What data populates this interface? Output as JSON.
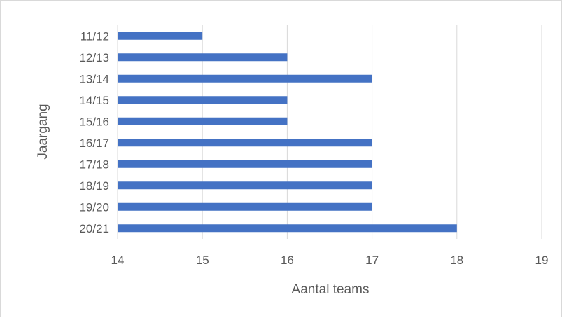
{
  "chart_data": {
    "type": "bar",
    "orientation": "horizontal",
    "title": "",
    "xlabel": "Aantal teams",
    "ylabel": "Jaargang",
    "xlim": [
      14,
      19
    ],
    "x_ticks": [
      14,
      15,
      16,
      17,
      18,
      19
    ],
    "categories": [
      "11/12",
      "12/13",
      "13/14",
      "14/15",
      "15/16",
      "16/17",
      "17/18",
      "18/19",
      "19/20",
      "20/21"
    ],
    "values": [
      15,
      16,
      17,
      16,
      16,
      17,
      17,
      17,
      17,
      18
    ],
    "bar_color": "#4472c4",
    "grid": true,
    "legend": "none"
  }
}
